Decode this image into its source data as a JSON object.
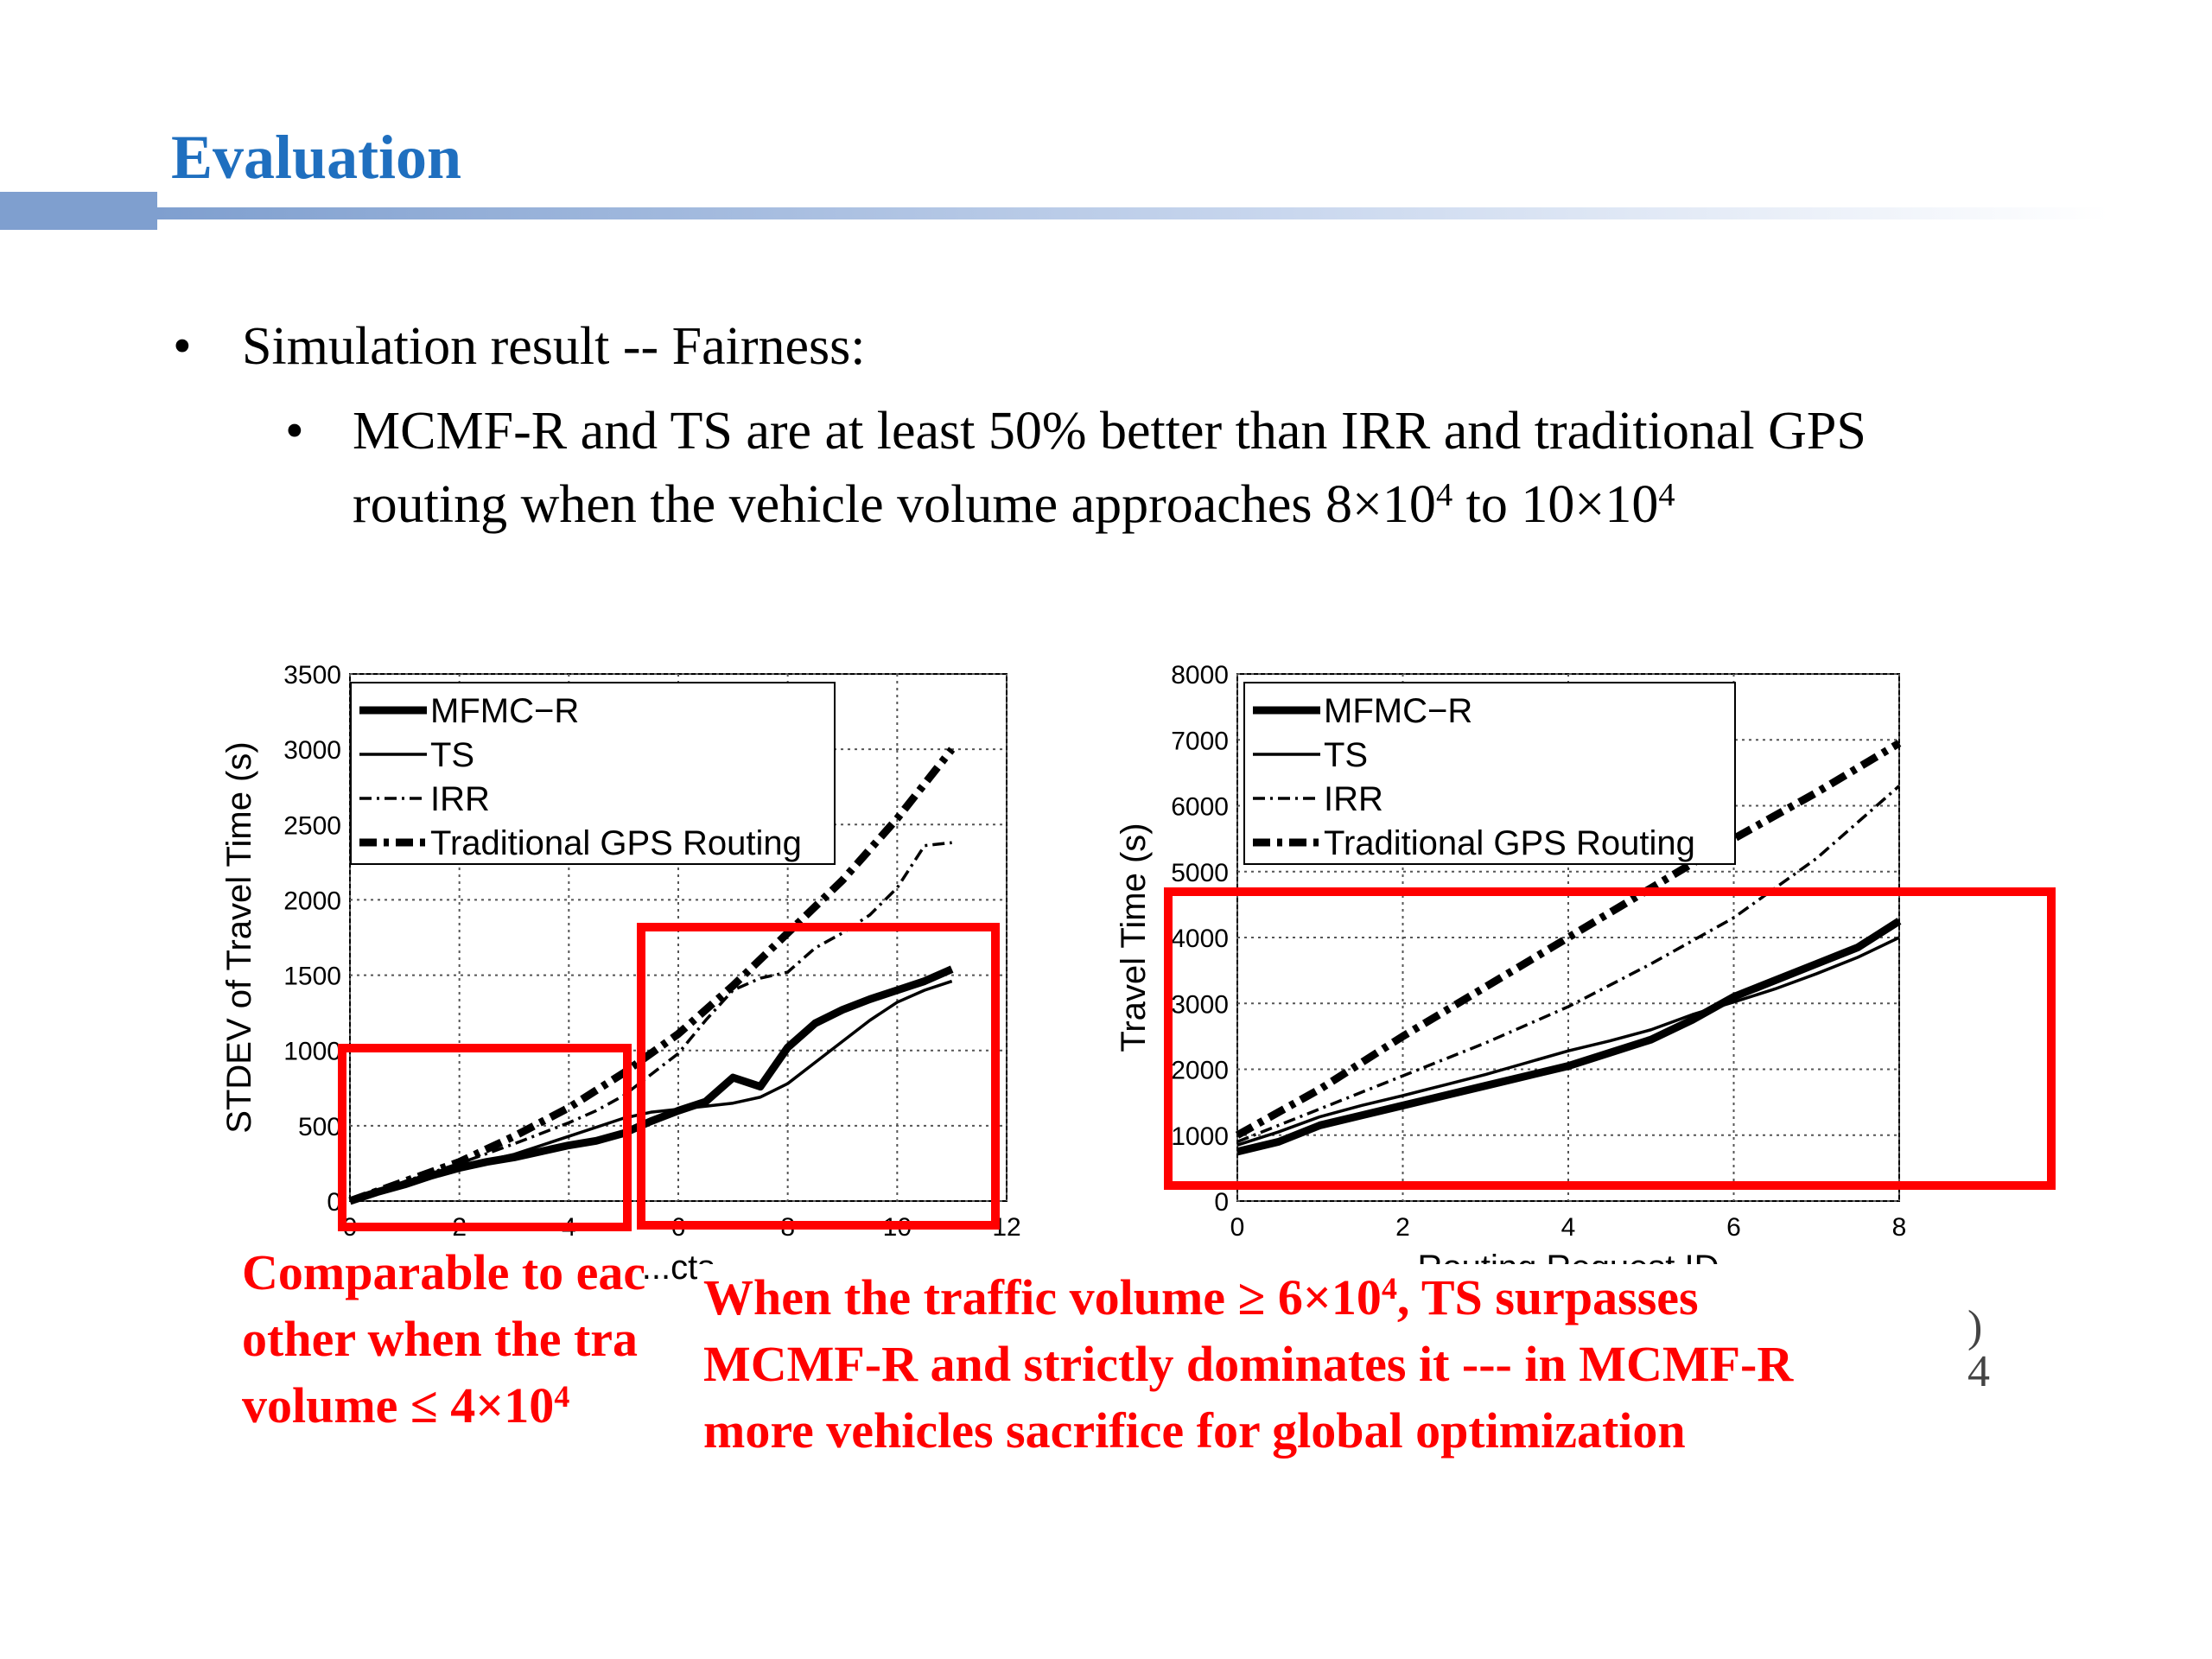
{
  "title": "Evaluation",
  "bullets": {
    "level1": "Simulation result -- Fairness:",
    "level2_line1": "MCMF-R and TS are at least 50% better than IRR and traditional GPS",
    "level2_line2_prefix": "routing when the vehicle volume approaches 8×10",
    "level2_exp": "4",
    "level2_mid": " to 10×10",
    "level2_exp2": "4"
  },
  "annotations": {
    "left_line1": "Comparable to eac",
    "left_line2": "other when the tra",
    "left_line3_prefix": "volume ≤ 4×10",
    "left_exp": "4",
    "right_line1_prefix": "When the traffic volume ≥ 6×10",
    "right_exp": "4",
    "right_line1_suffix": ", TS surpasses",
    "right_line2": "MCMF-R and strictly dominates it --- in MCMF-R",
    "right_line3": "more vehicles sacrifice for global optimization"
  },
  "page_number": "4",
  "page_number_partial": ")",
  "colors": {
    "title": "#1f6fbf",
    "annotation": "#ff0000",
    "highlight_box": "#ff0000"
  },
  "chart_data": [
    {
      "type": "line",
      "ylabel": "STDEV of Travel Time (s)",
      "xlabel_visible_fragment": "...cts",
      "xlim": [
        0,
        12
      ],
      "ylim": [
        0,
        3500
      ],
      "yticks": [
        "0",
        "500",
        "1000",
        "1500",
        "2000",
        "2500",
        "3000",
        "3500"
      ],
      "xticks": [
        "0",
        "2",
        "4",
        "6",
        "8",
        "10",
        "12"
      ],
      "grid": true,
      "legend_position": "top-left",
      "series": [
        {
          "name": "MFMC−R",
          "style": "thick-solid",
          "x": [
            0,
            0.5,
            1,
            1.5,
            2,
            2.5,
            3,
            3.5,
            4,
            4.5,
            5,
            5.5,
            6,
            6.5,
            7,
            7.5,
            8,
            8.5,
            9,
            9.5,
            10,
            10.5,
            11
          ],
          "y": [
            0,
            60,
            110,
            170,
            220,
            260,
            290,
            330,
            370,
            400,
            450,
            530,
            600,
            660,
            820,
            760,
            1020,
            1180,
            1270,
            1340,
            1400,
            1460,
            1540
          ]
        },
        {
          "name": "TS",
          "style": "thin-solid",
          "x": [
            0,
            0.5,
            1,
            1.5,
            2,
            2.5,
            3,
            3.5,
            4,
            4.5,
            5,
            5.5,
            6,
            6.5,
            7,
            7.5,
            8,
            8.5,
            9,
            9.5,
            10,
            10.5,
            11
          ],
          "y": [
            0,
            70,
            120,
            180,
            230,
            270,
            310,
            370,
            430,
            490,
            550,
            590,
            610,
            630,
            650,
            690,
            780,
            920,
            1060,
            1200,
            1320,
            1400,
            1460
          ]
        },
        {
          "name": "IRR",
          "style": "dash-dot",
          "x": [
            0,
            1,
            2,
            3,
            4,
            4.5,
            5,
            5.5,
            6,
            6.5,
            7,
            7.5,
            8,
            8.5,
            9,
            9.5,
            10,
            10.5,
            11
          ],
          "y": [
            0,
            130,
            250,
            380,
            520,
            600,
            700,
            840,
            980,
            1200,
            1400,
            1480,
            1520,
            1680,
            1780,
            1900,
            2080,
            2360,
            2380
          ]
        },
        {
          "name": "Traditional GPS Routing",
          "style": "thick-dash-dot",
          "x": [
            0,
            1,
            2,
            3,
            4,
            5,
            6,
            7,
            8,
            9,
            10,
            11
          ],
          "y": [
            0,
            130,
            260,
            430,
            620,
            850,
            1110,
            1430,
            1780,
            2130,
            2540,
            3000
          ]
        }
      ]
    },
    {
      "type": "line",
      "ylabel": "Travel Time (s)",
      "xlabel": "Routing Request ID",
      "xlim": [
        0,
        8
      ],
      "ylim": [
        0,
        8000
      ],
      "yticks": [
        "0",
        "1000",
        "2000",
        "3000",
        "4000",
        "5000",
        "6000",
        "7000",
        "8000"
      ],
      "xticks": [
        "0",
        "2",
        "4",
        "6",
        "8"
      ],
      "grid": true,
      "legend_position": "top-left",
      "series": [
        {
          "name": "MFMC−R",
          "style": "thick-solid",
          "x": [
            0,
            0.5,
            1,
            1.5,
            2,
            2.5,
            3,
            3.5,
            4,
            4.5,
            5,
            5.5,
            6,
            6.5,
            7,
            7.5,
            8
          ],
          "y": [
            750,
            900,
            1150,
            1300,
            1450,
            1600,
            1750,
            1900,
            2050,
            2250,
            2450,
            2750,
            3100,
            3350,
            3600,
            3850,
            4250
          ]
        },
        {
          "name": "TS",
          "style": "thin-solid",
          "x": [
            0,
            0.5,
            1,
            1.5,
            2,
            2.5,
            3,
            3.5,
            4,
            4.5,
            5,
            5.5,
            6,
            6.5,
            7,
            7.5,
            8
          ],
          "y": [
            850,
            1050,
            1280,
            1450,
            1600,
            1760,
            1920,
            2100,
            2280,
            2430,
            2600,
            2830,
            3020,
            3220,
            3450,
            3700,
            4000
          ]
        },
        {
          "name": "IRR",
          "style": "dash-dot",
          "x": [
            0,
            1,
            2,
            3,
            4,
            5,
            6,
            7,
            8
          ],
          "y": [
            900,
            1400,
            1900,
            2400,
            2950,
            3600,
            4300,
            5200,
            6300
          ]
        },
        {
          "name": "Traditional GPS Routing",
          "style": "thick-dash-dot",
          "x": [
            0,
            1,
            2,
            3,
            4,
            5,
            6,
            7,
            8
          ],
          "y": [
            1000,
            1700,
            2500,
            3250,
            4000,
            4750,
            5500,
            6200,
            6950
          ]
        }
      ]
    }
  ]
}
